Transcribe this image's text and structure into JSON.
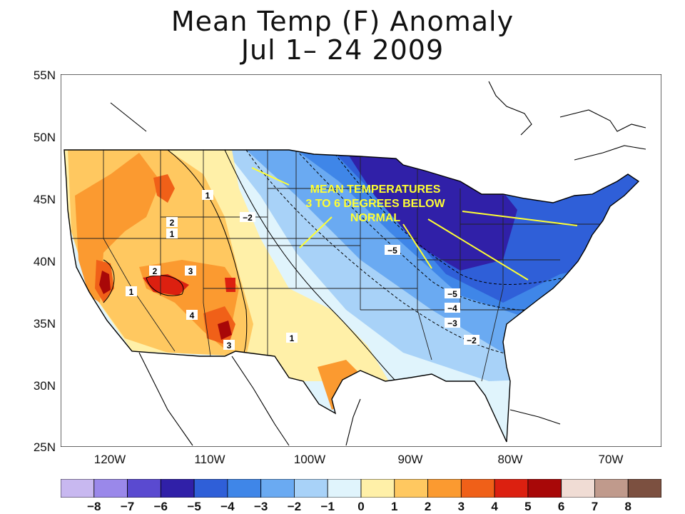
{
  "title": {
    "line1": "Mean Temp (F) Anomaly",
    "line2": "Jul 1– 24 2009"
  },
  "lat_labels": [
    "55N",
    "50N",
    "45N",
    "40N",
    "35N",
    "30N",
    "25N"
  ],
  "lon_labels": [
    "120W",
    "110W",
    "100W",
    "90W",
    "80W",
    "70W"
  ],
  "annotation": {
    "line1": "MEAN TEMPERATURES",
    "line2": "3 TO 6 DEGREES BELOW",
    "line3": "NORMAL",
    "color": "#ffff33"
  },
  "contour_labels": [
    "1",
    "2",
    "2",
    "1",
    "2",
    "3",
    "1",
    "4",
    "3",
    "1",
    "−2",
    "−5",
    "−5",
    "−4",
    "−3",
    "−2"
  ],
  "colorbar": {
    "labels": [
      "−8",
      "−7",
      "−6",
      "−5",
      "−4",
      "−3",
      "−2",
      "−1",
      "0",
      "1",
      "2",
      "3",
      "4",
      "5",
      "6",
      "7",
      "8"
    ],
    "colors": [
      "#c8b8f0",
      "#9a88ea",
      "#5a4ad0",
      "#3020a8",
      "#2f5fd8",
      "#3f86e8",
      "#6aaaf2",
      "#a8d2f8",
      "#e0f4fc",
      "#fff0a8",
      "#ffc860",
      "#fb9a30",
      "#f06018",
      "#dc2010",
      "#a80808",
      "#f0dcd4",
      "#c09a8c",
      "#7c5040"
    ]
  }
}
